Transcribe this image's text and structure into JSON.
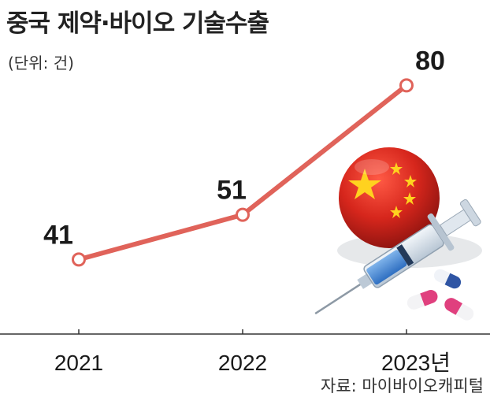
{
  "title": "중국 제약·바이오 기술수출",
  "unit_label": "(단위: 건)",
  "source": "자료: 마이바이오캐피털",
  "colors": {
    "line": "#e0635a",
    "axis": "#333333",
    "flag_red": "#d6261c",
    "flag_star": "#ffd21f"
  },
  "chart_data": {
    "type": "line",
    "title": "중국 제약·바이오 기술수출",
    "unit": "건",
    "categories": [
      "2021",
      "2022",
      "2023"
    ],
    "tick_labels": [
      "2021",
      "2022",
      "2023년"
    ],
    "values": [
      41,
      51,
      80
    ],
    "value_labels": [
      "41",
      "51",
      "80"
    ],
    "ylim": [
      25,
      85
    ],
    "grid": false,
    "legend": "none"
  },
  "illustration": {
    "icons": [
      "china-flag-sphere-icon",
      "syringe-icon",
      "capsule-icon"
    ]
  }
}
